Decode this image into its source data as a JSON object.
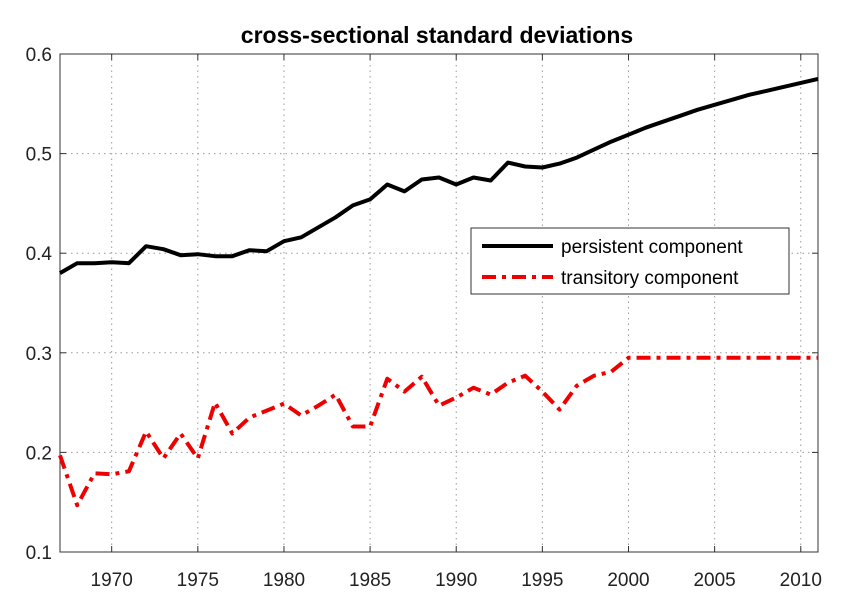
{
  "chart_data": {
    "type": "line",
    "title": "cross-sectional standard deviations",
    "xlabel": "",
    "ylabel": "",
    "xlim": [
      1967,
      2011
    ],
    "ylim": [
      0.1,
      0.6
    ],
    "xticks": [
      1970,
      1975,
      1980,
      1985,
      1990,
      1995,
      2000,
      2005,
      2010
    ],
    "yticks": [
      0.1,
      0.2,
      0.3,
      0.4,
      0.5,
      0.6
    ],
    "grid": true,
    "legend_position": "right-middle",
    "x": [
      1967,
      1968,
      1969,
      1970,
      1971,
      1972,
      1973,
      1974,
      1975,
      1976,
      1977,
      1978,
      1979,
      1980,
      1981,
      1982,
      1983,
      1984,
      1985,
      1986,
      1987,
      1988,
      1989,
      1990,
      1991,
      1992,
      1993,
      1994,
      1995,
      1996,
      1997,
      1998,
      1999,
      2000,
      2001,
      2002,
      2003,
      2004,
      2005,
      2006,
      2007,
      2008,
      2009,
      2010,
      2011
    ],
    "series": [
      {
        "name": "persistent component",
        "color": "#000000",
        "style": "solid",
        "values": [
          0.38,
          0.39,
          0.39,
          0.391,
          0.39,
          0.407,
          0.404,
          0.398,
          0.399,
          0.397,
          0.397,
          0.403,
          0.402,
          0.412,
          0.416,
          0.426,
          0.436,
          0.448,
          0.454,
          0.469,
          0.462,
          0.474,
          0.476,
          0.469,
          0.476,
          0.473,
          0.491,
          0.487,
          0.486,
          0.49,
          0.496,
          0.504,
          0.512,
          0.519,
          0.526,
          0.532,
          0.538,
          0.544,
          0.549,
          0.554,
          0.559,
          0.563,
          0.567,
          0.571,
          0.575
        ]
      },
      {
        "name": "transitory component",
        "color": "#ee0000",
        "style": "dashdot",
        "values": [
          0.197,
          0.147,
          0.179,
          0.178,
          0.181,
          0.221,
          0.194,
          0.219,
          0.194,
          0.25,
          0.219,
          0.235,
          0.242,
          0.249,
          0.237,
          0.247,
          0.258,
          0.226,
          0.226,
          0.274,
          0.261,
          0.276,
          0.247,
          0.255,
          0.265,
          0.258,
          0.27,
          0.277,
          0.261,
          0.243,
          0.267,
          0.277,
          0.281,
          0.295,
          0.295,
          0.295,
          0.295,
          0.295,
          0.295,
          0.295,
          0.295,
          0.295,
          0.295,
          0.295,
          0.295
        ]
      }
    ]
  }
}
